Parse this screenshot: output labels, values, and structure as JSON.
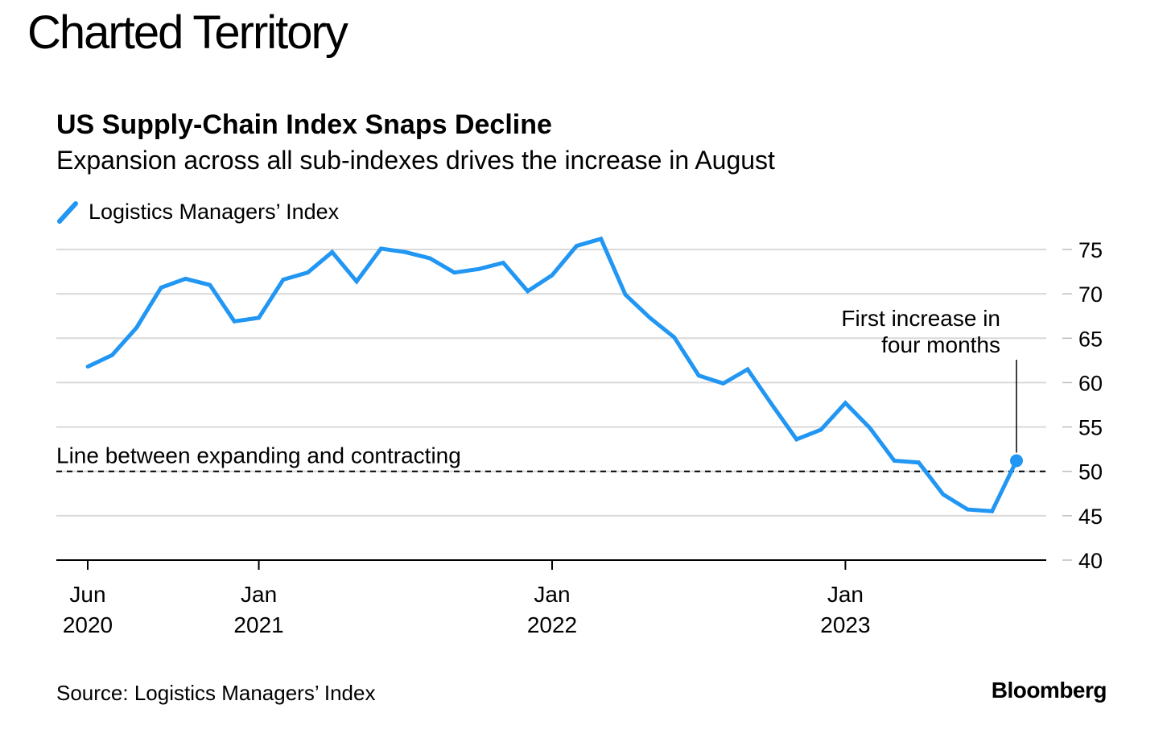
{
  "header": {
    "title": "Charted Territory"
  },
  "source": "Source: Logistics Managers’ Index",
  "brand": "Bloomberg",
  "colors": {
    "series": "#2196f3",
    "grid": "#d9d9d9",
    "axis": "#000000",
    "reference": "#000000",
    "text": "#000000"
  },
  "chart_data": {
    "type": "line",
    "title": "US Supply-Chain Index Snaps Decline",
    "subtitle": "Expansion across all sub-indexes drives the increase in August",
    "xlabel": "",
    "ylabel": "",
    "ylim": [
      40,
      75
    ],
    "yticks": [
      "75",
      "70",
      "65",
      "60",
      "55",
      "50",
      "45",
      "40"
    ],
    "y_axis_side": "right",
    "grid": true,
    "legend_position": "top-left",
    "xlim": [
      "2020-06",
      "2023-08"
    ],
    "xticks": [
      {
        "month": "2020-06",
        "line1": "Jun",
        "line2": "2020"
      },
      {
        "month": "2021-01",
        "line1": "Jan",
        "line2": "2021"
      },
      {
        "month": "2022-01",
        "line1": "Jan",
        "line2": "2022"
      },
      {
        "month": "2023-01",
        "line1": "Jan",
        "line2": "2023"
      }
    ],
    "series": [
      {
        "name": "Logistics Managers’ Index",
        "color": "#2196f3",
        "x": [
          "2020-06",
          "2020-07",
          "2020-08",
          "2020-09",
          "2020-10",
          "2020-11",
          "2020-12",
          "2021-01",
          "2021-02",
          "2021-03",
          "2021-04",
          "2021-05",
          "2021-06",
          "2021-07",
          "2021-08",
          "2021-09",
          "2021-10",
          "2021-11",
          "2021-12",
          "2022-01",
          "2022-02",
          "2022-03",
          "2022-04",
          "2022-05",
          "2022-06",
          "2022-07",
          "2022-08",
          "2022-09",
          "2022-10",
          "2022-11",
          "2022-12",
          "2023-01",
          "2023-02",
          "2023-03",
          "2023-04",
          "2023-05",
          "2023-06",
          "2023-07",
          "2023-08"
        ],
        "values": [
          61.8,
          63.1,
          66.2,
          70.7,
          71.7,
          71.0,
          66.9,
          67.3,
          71.6,
          72.4,
          74.7,
          71.4,
          75.1,
          74.7,
          74.0,
          72.4,
          72.8,
          73.5,
          70.3,
          72.1,
          75.4,
          76.2,
          69.9,
          67.3,
          65.1,
          60.8,
          59.9,
          61.5,
          57.5,
          53.6,
          54.7,
          57.7,
          54.9,
          51.2,
          51.0,
          47.4,
          45.7,
          45.5,
          51.2
        ]
      }
    ],
    "reference_line": {
      "y": 50,
      "label": "Line between expanding and contracting",
      "style": "dashed"
    },
    "annotations": [
      {
        "x": "2023-08",
        "y": 51.2,
        "lines": [
          "First increase in",
          "four months"
        ]
      }
    ]
  }
}
